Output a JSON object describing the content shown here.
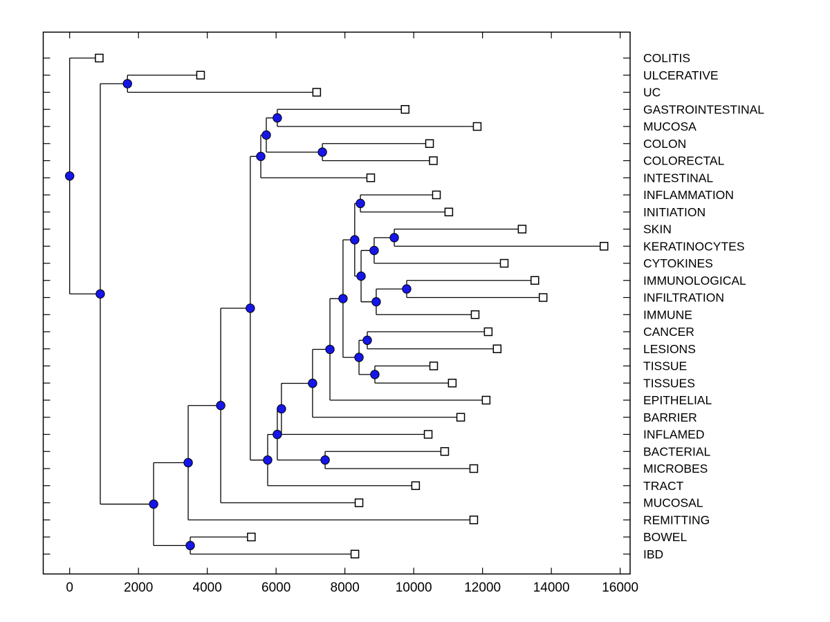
{
  "figure": {
    "background": "#ffffff",
    "line_color": "#000000",
    "branch_dot_fill": "#1616e8",
    "branch_dot_edge": "#000000",
    "leaf_marker_fill": "#ffffff",
    "leaf_marker_edge": "#000000",
    "text_color": "#000000"
  },
  "chart_data": {
    "type": "dendrogram",
    "subtype": "phylogenetic-tree-left-rooted",
    "title": "",
    "xlabel": "",
    "ylabel": "",
    "grid": false,
    "x_ticks": [
      0,
      2000,
      4000,
      6000,
      8000,
      10000,
      12000,
      14000,
      16000
    ],
    "x_axis_range_visible": [
      -770,
      16290
    ],
    "leaf_count": 30,
    "leaf_order_top_to_bottom": [
      "COLITIS",
      "ULCERATIVE",
      "UC",
      "GASTROINTESTINAL",
      "MUCOSA",
      "COLON",
      "COLORECTAL",
      "INTESTINAL",
      "INFLAMMATION",
      "INITIATION",
      "SKIN",
      "KERATINOCYTES",
      "CYTOKINES",
      "IMMUNOLOGICAL",
      "INFILTRATION",
      "IMMUNE",
      "CANCER",
      "LESIONS",
      "TISSUE",
      "TISSUES",
      "EPITHELIAL",
      "BARRIER",
      "INFLAMED",
      "BACTERIAL",
      "MICROBES",
      "TRACT",
      "MUCOSAL",
      "REMITTING",
      "BOWEL",
      "IBD"
    ],
    "tree": {
      "x": 0,
      "children": [
        {
          "label": "COLITIS",
          "x": 860
        },
        {
          "x": 890,
          "children": [
            {
              "x": 1680,
              "children": [
                {
                  "label": "ULCERATIVE",
                  "x": 3805
                },
                {
                  "label": "UC",
                  "x": 7180
                }
              ]
            },
            {
              "x": 2440,
              "children": [
                {
                  "x": 3445,
                  "children": [
                    {
                      "x": 4390,
                      "children": [
                        {
                          "x": 5250,
                          "children": [
                            {
                              "x": 5555,
                              "children": [
                                {
                                  "x": 5715,
                                  "children": [
                                    {
                                      "x": 6035,
                                      "children": [
                                        {
                                          "label": "GASTROINTESTINAL",
                                          "x": 9750
                                        },
                                        {
                                          "label": "MUCOSA",
                                          "x": 11845
                                        }
                                      ]
                                    },
                                    {
                                      "x": 7345,
                                      "children": [
                                        {
                                          "label": "COLON",
                                          "x": 10460
                                        },
                                        {
                                          "label": "COLORECTAL",
                                          "x": 10570
                                        }
                                      ]
                                    }
                                  ]
                                },
                                {
                                  "label": "INTESTINAL",
                                  "x": 8750
                                }
                              ]
                            },
                            {
                              "x": 5755,
                              "children": [
                                {
                                  "x": 6035,
                                  "children": [
                                    {
                                      "x": 6155,
                                      "children": [
                                        {
                                          "x": 7060,
                                          "children": [
                                            {
                                              "x": 7565,
                                              "children": [
                                                {
                                                  "x": 7945,
                                                  "children": [
                                                    {
                                                      "x": 8285,
                                                      "children": [
                                                        {
                                                          "x": 8450,
                                                          "children": [
                                                            {
                                                              "label": "INFLAMMATION",
                                                              "x": 10660
                                                            },
                                                            {
                                                              "label": "INITIATION",
                                                              "x": 11020
                                                            }
                                                          ]
                                                        },
                                                        {
                                                          "x": 8470,
                                                          "children": [
                                                            {
                                                              "x": 8850,
                                                              "children": [
                                                                {
                                                                  "x": 9435,
                                                                  "children": [
                                                                    {
                                                                      "label": "SKIN",
                                                                      "x": 13150
                                                                    },
                                                                    {
                                                                      "label": "KERATINOCYTES",
                                                                      "x": 15530
                                                                    }
                                                                  ]
                                                                },
                                                                {
                                                                  "label": "CYTOKINES",
                                                                  "x": 12630
                                                                }
                                                              ]
                                                            },
                                                            {
                                                              "x": 8910,
                                                              "children": [
                                                                {
                                                                  "x": 9795,
                                                                  "children": [
                                                                    {
                                                                      "label": "IMMUNOLOGICAL",
                                                                      "x": 13520
                                                                    },
                                                                    {
                                                                      "label": "INFILTRATION",
                                                                      "x": 13760
                                                                    }
                                                                  ]
                                                                },
                                                                {
                                                                  "label": "IMMUNE",
                                                                  "x": 11785
                                                                }
                                                              ]
                                                            }
                                                          ]
                                                        }
                                                      ]
                                                    },
                                                    {
                                                      "x": 8410,
                                                      "children": [
                                                        {
                                                          "x": 8650,
                                                          "children": [
                                                            {
                                                              "label": "CANCER",
                                                              "x": 12165
                                                            },
                                                            {
                                                              "label": "LESIONS",
                                                              "x": 12425
                                                            }
                                                          ]
                                                        },
                                                        {
                                                          "x": 8870,
                                                          "children": [
                                                            {
                                                              "label": "TISSUE",
                                                              "x": 10580
                                                            },
                                                            {
                                                              "label": "TISSUES",
                                                              "x": 11120
                                                            }
                                                          ]
                                                        }
                                                      ]
                                                    }
                                                  ]
                                                },
                                                {
                                                  "label": "EPITHELIAL",
                                                  "x": 12105
                                                }
                                              ]
                                            },
                                            {
                                              "label": "BARRIER",
                                              "x": 11365
                                            }
                                          ]
                                        },
                                        {
                                          "label": "INFLAMED",
                                          "x": 10420
                                        }
                                      ]
                                    },
                                    {
                                      "x": 7425,
                                      "children": [
                                        {
                                          "label": "BACTERIAL",
                                          "x": 10900
                                        },
                                        {
                                          "label": "MICROBES",
                                          "x": 11745
                                        }
                                      ]
                                    }
                                  ]
                                },
                                {
                                  "label": "TRACT",
                                  "x": 10055
                                }
                              ]
                            }
                          ]
                        },
                        {
                          "label": "MUCOSAL",
                          "x": 8410
                        }
                      ]
                    },
                    {
                      "label": "REMITTING",
                      "x": 11745
                    }
                  ]
                },
                {
                  "x": 3505,
                  "children": [
                    {
                      "label": "BOWEL",
                      "x": 5280
                    },
                    {
                      "label": "IBD",
                      "x": 8290
                    }
                  ]
                }
              ]
            }
          ]
        }
      ]
    }
  }
}
